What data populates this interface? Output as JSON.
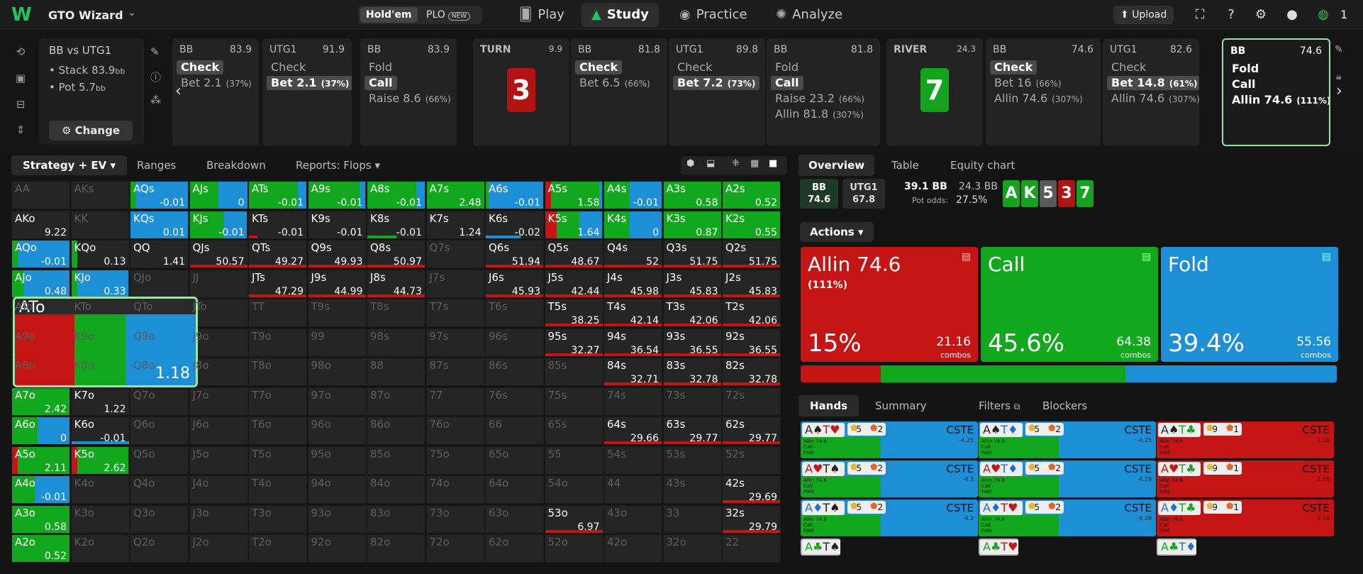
{
  "topbar": {
    "brand": "GTO Wizard",
    "holdem": "Hold'em",
    "plo": "PLO",
    "new_badge": "NEW",
    "nav": [
      {
        "label": "Play",
        "icon": "cards-icon"
      },
      {
        "label": "Study",
        "icon": "study-cap-icon"
      },
      {
        "label": "Practice",
        "icon": "gamepad-icon"
      },
      {
        "label": "Analyze",
        "icon": "analyze-bulb-icon"
      }
    ],
    "upload": "Upload"
  },
  "info": {
    "title": "BB vs UTG1",
    "stack_label": "Stack",
    "stack": "83.9",
    "pot_label": "Pot",
    "pot": "5.7",
    "unit": "bb",
    "change": "Change"
  },
  "history": [
    {
      "player": "BB",
      "amount": "83.9",
      "lines": [
        {
          "t": "Check",
          "sel": true
        },
        {
          "t": "Bet 2.1",
          "p": "(37%)"
        }
      ]
    },
    {
      "player": "UTG1",
      "amount": "91.9",
      "lines": [
        {
          "t": "Check"
        },
        {
          "t": "Bet 2.1",
          "p": "(37%)",
          "sel": true
        }
      ]
    },
    {
      "player": "BB",
      "amount": "83.9",
      "lines": [
        {
          "t": "Fold"
        },
        {
          "t": "Call",
          "sel": true
        },
        {
          "t": "Raise 8.6",
          "p": "(66%)"
        }
      ]
    },
    {
      "street": "TURN",
      "amount": "9.9",
      "card": "3",
      "color": "#b31212"
    },
    {
      "player": "BB",
      "amount": "81.8",
      "lines": [
        {
          "t": "Check",
          "sel": true
        },
        {
          "t": "Bet 6.5",
          "p": "(66%)"
        }
      ]
    },
    {
      "player": "UTG1",
      "amount": "89.8",
      "lines": [
        {
          "t": "Check"
        },
        {
          "t": "Bet 7.2",
          "p": "(73%)",
          "sel": true
        }
      ]
    },
    {
      "player": "BB",
      "amount": "81.8",
      "lines": [
        {
          "t": "Fold"
        },
        {
          "t": "Call",
          "sel": true
        },
        {
          "t": "Raise 23.2",
          "p": "(66%)"
        },
        {
          "t": "Allin 81.8",
          "p": "(307%)"
        }
      ]
    },
    {
      "street": "RIVER",
      "amount": "24.3",
      "card": "7",
      "color": "#14a31e"
    },
    {
      "player": "BB",
      "amount": "74.6",
      "lines": [
        {
          "t": "Check",
          "sel": true
        },
        {
          "t": "Bet 16",
          "p": "(66%)"
        },
        {
          "t": "Allin 74.6",
          "p": "(307%)"
        }
      ]
    },
    {
      "player": "UTG1",
      "amount": "82.6",
      "lines": [
        {
          "t": "Check"
        },
        {
          "t": "Bet 14.8",
          "p": "(61%)",
          "sel": true
        },
        {
          "t": "Allin 74.6",
          "p": "(307%)"
        }
      ]
    },
    {
      "player": "BB",
      "amount": "74.6",
      "lines": [
        {
          "t": "Fold"
        },
        {
          "t": "Call"
        },
        {
          "t": "Allin 74.6",
          "p": "(111%)"
        }
      ],
      "current": true
    }
  ],
  "strategy_tabs": [
    "Strategy + EV",
    "Ranges",
    "Breakdown",
    "Reports: Flops"
  ],
  "grid_colors": {
    "allin": "#c41414",
    "call": "#12a81e",
    "fold": "#1c8fd6"
  },
  "grid": [
    [
      "AA",
      "AKs",
      "AQs|-0.01|0,10,90",
      "AJs|0|0,50,50",
      "ATs|-0.01|0,85,15",
      "A9s|-0.01|0,90,10",
      "A8s|-0.01|0,85,15",
      "A7s|2.48|0,100,0",
      "A6s|-0.01|0,5,95",
      "A5s|1.58|10,85,5",
      "A4s|-0.01|0,45,55",
      "A3s|0.58|0,100,0",
      "A2s|0.52|0,100,0"
    ],
    [
      "AKo|9.22|",
      "KK",
      "KQs|0.01|0,0,100",
      "KJs|-0.01|0,60,40",
      "KTs|-0.01|0,0,0,r15",
      "K9s|-0.01|",
      "K8s|-0.01|0,0,0,g50",
      "K7s|1.24|",
      "K6s|-0.02|0,0,0,b60",
      "K5s|1.64|20,40,40",
      "K4s|0|0,45,55",
      "K3s|0.87|0,100,0",
      "K2s|0.55|0,100,0"
    ],
    [
      "AQo|-0.01|0,10,90",
      "KQo|0.13|0,10,0",
      "QQ|1.41|",
      "QJs|50.57|r100",
      "QTs|49.27|r100",
      "Q9s|49.93|r100",
      "Q8s|50.97|r100",
      "Q7s",
      "Q6s|51.94|r100",
      "Q5s|48.67|r100",
      "Q4s|52|r100",
      "Q3s|51.75|r100",
      "Q2s|51.75|r100"
    ],
    [
      "AJo|0.48|0,20,80",
      "KJo|0.33|0,10,90",
      "QJo",
      "JJ",
      "JTs|47.29|r100",
      "J9s|44.99|r100",
      "J8s|44.73|r100",
      "J7s",
      "J6s|45.93|r100",
      "J5s|42.44|r100",
      "J4s|45.98|r100",
      "J3s|45.83|r100",
      "J2s|45.83|r100"
    ],
    [
      "ATo",
      "KTo",
      "QTo",
      "JTo",
      "TT",
      "T9s",
      "T8s",
      "T7s",
      "T6s",
      "T5s|38.25|r100",
      "T4s|42.14|r100",
      "T3s|42.06|r100",
      "T2s|42.06|r100"
    ],
    [
      "A9o",
      "K9o",
      "Q9o",
      "J9o",
      "T9o",
      "99",
      "98s",
      "97s",
      "96s",
      "95s|32.27|r100",
      "94s|36.54|r100",
      "93s|36.55|r100",
      "92s|36.55|r100"
    ],
    [
      "A8o",
      "K8o",
      "Q8o",
      "J8o",
      "T8o",
      "98o",
      "88",
      "87s",
      "86s",
      "85s",
      "84s|32.71|r100",
      "83s|32.78|r100",
      "82s|32.78|r100"
    ],
    [
      "A7o|2.42|0,100,0",
      "K7o|1.22|",
      "Q7o",
      "J7o",
      "T7o",
      "97o",
      "87o",
      "77",
      "76s",
      "75s",
      "74s",
      "73s",
      "72s"
    ],
    [
      "A6o|0|0,45,55",
      "K6o|-0.01|0,0,0,b100",
      "Q6o",
      "J6o",
      "T6o",
      "96o",
      "86o",
      "76o",
      "66",
      "65s",
      "64s|29.66|r100",
      "63s|29.77|r100",
      "62s|29.77|r100"
    ],
    [
      "A5o|2.11|10,90,0",
      "K5o|2.62|10,90,0",
      "Q5o",
      "J5o",
      "T5o",
      "95o",
      "85o",
      "75o",
      "65o",
      "55",
      "54s",
      "53s",
      "52s"
    ],
    [
      "A4o|-0.01|0,40,60",
      "K4o",
      "Q4o",
      "J4o",
      "T4o",
      "94o",
      "84o",
      "74o",
      "64o",
      "54o",
      "44",
      "43s",
      "42s|29.69|r100"
    ],
    [
      "A3o|0.58|0,100,0",
      "K3o",
      "Q3o",
      "J3o",
      "T3o",
      "93o",
      "83o",
      "73o",
      "63o",
      "53o|6.97|r100",
      "43o",
      "33",
      "32s|29.79|r100"
    ],
    [
      "A2o|0.52|0,100,0",
      "K2o",
      "Q2o",
      "J2o",
      "T2o",
      "92o",
      "82o",
      "72o",
      "62o",
      "52o",
      "42o",
      "32o",
      "22"
    ]
  ],
  "zoom": {
    "hand": "ATo",
    "ev": "1.18"
  },
  "overview": {
    "tabs": [
      "Overview",
      "Table",
      "Equity chart"
    ],
    "bb_label": "BB",
    "bb_stack": "74.6",
    "utg_label": "UTG1",
    "utg_stack": "67.8",
    "pot": "39.1 BB",
    "pot2": "24.3 BB",
    "pot_odds_label": "Pot odds:",
    "pot_odds": "27.5%",
    "board": [
      {
        "r": "A",
        "c": "#14a31e"
      },
      {
        "r": "K",
        "c": "#14a31e"
      },
      {
        "r": "5",
        "c": "#5a5a5a"
      },
      {
        "r": "3",
        "c": "#b31212"
      },
      {
        "r": "7",
        "c": "#14a31e"
      }
    ]
  },
  "actions": {
    "label": "Actions",
    "cards": [
      {
        "name": "Allin 74.6",
        "sub": "(111%)",
        "pct": "15%",
        "combos": "21.16",
        "color": "#c41414"
      },
      {
        "name": "Call",
        "sub": "",
        "pct": "45.6%",
        "combos": "64.38",
        "color": "#12a81e"
      },
      {
        "name": "Fold",
        "sub": "",
        "pct": "39.4%",
        "combos": "55.56",
        "color": "#1c8fd6"
      }
    ],
    "combos_label": "combos",
    "bar": [
      15,
      45.6,
      39.4
    ]
  },
  "hands_tabs": [
    "Hands",
    "Summary",
    "Filters",
    "Blockers"
  ],
  "hands": [
    {
      "c1": "A♠",
      "c2": "T♥",
      "b1": "5",
      "b2": "2",
      "label": "CSTE",
      "ev": "-4.25",
      "mix": [
        0,
        45,
        55
      ]
    },
    {
      "c1": "A♠",
      "c2": "T♦",
      "b1": "5",
      "b2": "2",
      "label": "CSTE",
      "ev": "-4.25",
      "mix": [
        0,
        45,
        55
      ]
    },
    {
      "c1": "A♠",
      "c2": "T♣",
      "b1": "9",
      "b2": "1",
      "label": "CSTE",
      "ev": "1.18",
      "mix": [
        100,
        0,
        0
      ]
    },
    {
      "c1": "A♥",
      "c2": "T♠",
      "b1": "5",
      "b2": "2",
      "label": "CSTE",
      "ev": "-4.3",
      "mix": [
        0,
        45,
        55
      ]
    },
    {
      "c1": "A♥",
      "c2": "T♦",
      "b1": "5",
      "b2": "2",
      "label": "CSTE",
      "ev": "-4.29",
      "mix": [
        0,
        45,
        55
      ]
    },
    {
      "c1": "A♥",
      "c2": "T♣",
      "b1": "9",
      "b2": "1",
      "label": "CSTE",
      "ev": "1.18",
      "mix": [
        100,
        0,
        0
      ]
    },
    {
      "c1": "A♦",
      "c2": "T♠",
      "b1": "5",
      "b2": "2",
      "label": "CSTE",
      "ev": "-4.3",
      "mix": [
        0,
        45,
        55
      ]
    },
    {
      "c1": "A♦",
      "c2": "T♥",
      "b1": "5",
      "b2": "2",
      "label": "CSTE",
      "ev": "-4.29",
      "mix": [
        0,
        45,
        55
      ]
    },
    {
      "c1": "A♦",
      "c2": "T♣",
      "b1": "9",
      "b2": "1",
      "label": "CSTE",
      "ev": "1.18",
      "mix": [
        100,
        0,
        0
      ]
    },
    {
      "c1": "A♣",
      "c2": "T♠"
    },
    {
      "c1": "A♣",
      "c2": "T♥"
    },
    {
      "c1": "A♣",
      "c2": "T♦"
    }
  ],
  "hand_action_labels": {
    "allin": "Allin 74.6",
    "call": "Call",
    "fold": "Fold"
  }
}
